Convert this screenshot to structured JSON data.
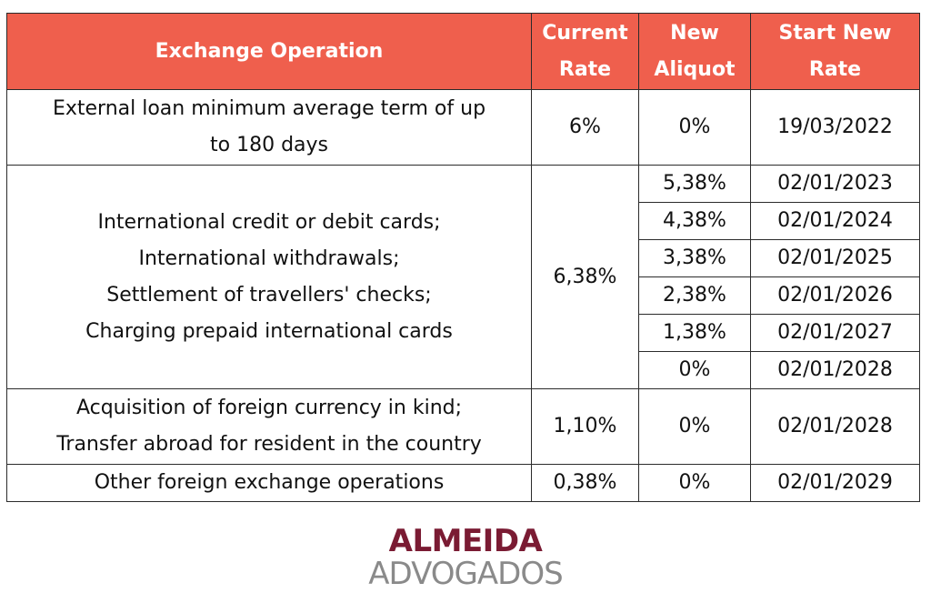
{
  "table": {
    "headers": {
      "operation": "Exchange Operation",
      "current_rate": [
        "Current",
        "Rate"
      ],
      "new_aliquot": [
        "New",
        "Aliquot"
      ],
      "start_new_rate": [
        "Start New",
        "Rate"
      ]
    },
    "loan": {
      "operation": [
        "External loan minimum average term of up",
        "to 180 days"
      ],
      "current_rate": "6%",
      "new_aliquot": "0%",
      "start_new_rate": "19/03/2022"
    },
    "cards": {
      "operation": [
        "International credit or debit cards;",
        "International withdrawals;",
        "Settlement of travellers' checks;",
        "Charging prepaid international cards"
      ],
      "current_rate": "6,38%",
      "schedule": [
        {
          "new_aliquot": "5,38%",
          "start_new_rate": "02/01/2023"
        },
        {
          "new_aliquot": "4,38%",
          "start_new_rate": "02/01/2024"
        },
        {
          "new_aliquot": "3,38%",
          "start_new_rate": "02/01/2025"
        },
        {
          "new_aliquot": "2,38%",
          "start_new_rate": "02/01/2026"
        },
        {
          "new_aliquot": "1,38%",
          "start_new_rate": "02/01/2027"
        },
        {
          "new_aliquot": "0%",
          "start_new_rate": "02/01/2028"
        }
      ]
    },
    "acquisition": {
      "operation": [
        "Acquisition of foreign currency in kind;",
        "Transfer abroad for resident in the country"
      ],
      "current_rate": "1,10%",
      "new_aliquot": "0%",
      "start_new_rate": "02/01/2028"
    },
    "other": {
      "operation": "Other foreign exchange operations",
      "current_rate": "0,38%",
      "new_aliquot": "0%",
      "start_new_rate": "02/01/2029"
    }
  },
  "logo": {
    "line1": "ALMEIDA",
    "line2": "ADVOGADOS"
  },
  "colors": {
    "header_bg": "#ef5f4d",
    "header_text": "#ffffff",
    "logo_primary": "#7a1b33",
    "logo_secondary": "#8a8a8a"
  }
}
